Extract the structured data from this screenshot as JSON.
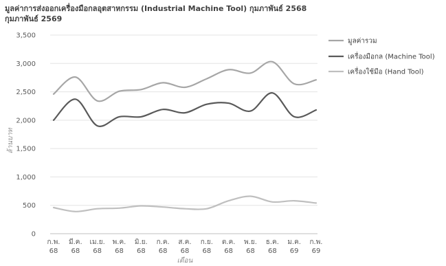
{
  "chart_data": {
    "type": "line",
    "title_line1": "มูลค่าการส่งออกเครื่องมือกลอุตสาหกรรม (Industrial Machine Tool) กุมภาพันธ์ 2568",
    "title_line2": "กุมภาพันธ์ 2569",
    "ylabel": "ล้านบาท",
    "xlabel": "เดือน",
    "ylim": [
      0,
      3500
    ],
    "yticks": [
      "0",
      "500",
      "1,000",
      "1,500",
      "2,000",
      "2,500",
      "3,000",
      "3,500"
    ],
    "grid": true,
    "legend_position": "right",
    "categories": [
      {
        "m": "ก.พ.",
        "y": "68"
      },
      {
        "m": "มี.ค.",
        "y": "68"
      },
      {
        "m": "เม.ย.",
        "y": "68"
      },
      {
        "m": "พ.ค.",
        "y": "68"
      },
      {
        "m": "มิ.ย.",
        "y": "68"
      },
      {
        "m": "ก.ค.",
        "y": "68"
      },
      {
        "m": "ส.ค.",
        "y": "68"
      },
      {
        "m": "ก.ย.",
        "y": "68"
      },
      {
        "m": "ต.ค.",
        "y": "68"
      },
      {
        "m": "พ.ย.",
        "y": "68"
      },
      {
        "m": "ธ.ค.",
        "y": "68"
      },
      {
        "m": "ม.ค.",
        "y": "69"
      },
      {
        "m": "ก.พ.",
        "y": "69"
      }
    ],
    "series": [
      {
        "name": "มูลค่ารวม",
        "color": "#a6a6a6",
        "values": [
          2460,
          2760,
          2340,
          2510,
          2540,
          2660,
          2580,
          2730,
          2890,
          2830,
          3030,
          2640,
          2710
        ]
      },
      {
        "name": "เครื่องมือกล (Machine Tool)",
        "color": "#595959",
        "values": [
          2000,
          2370,
          1900,
          2060,
          2060,
          2190,
          2130,
          2280,
          2300,
          2160,
          2480,
          2060,
          2180
        ]
      },
      {
        "name": "เครื่องใช้มือ (Hand Tool)",
        "color": "#bfbfbf",
        "values": [
          460,
          390,
          440,
          450,
          490,
          470,
          440,
          440,
          580,
          660,
          560,
          580,
          540
        ]
      }
    ]
  }
}
